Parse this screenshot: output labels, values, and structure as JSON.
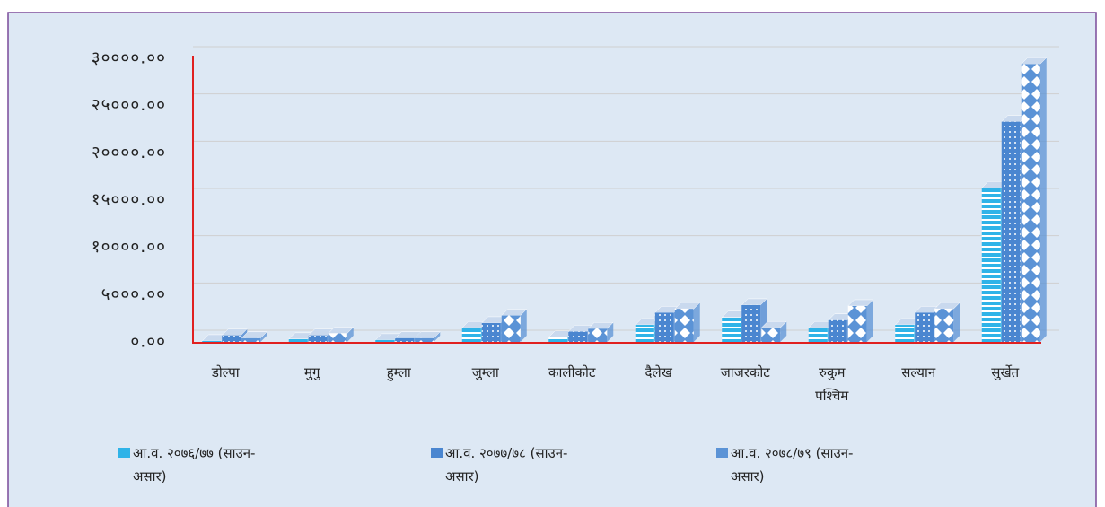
{
  "chart_data": {
    "type": "bar3d",
    "categories": [
      "डोल्पा",
      "मुगु",
      "हुम्ला",
      "जुम्ला",
      "कालीकोट",
      "दैलेख",
      "जाजरकोट",
      "रुकुम पश्चिम",
      "सल्यान",
      "सुर्खेत"
    ],
    "series": [
      {
        "name": "आ.व. २०७६/७७ (साउन-असार)",
        "color": "#2fb3e8",
        "pattern": "stripes",
        "values": [
          100,
          300,
          200,
          1500,
          500,
          1800,
          2600,
          1500,
          1800,
          16300
        ]
      },
      {
        "name": "आ.व. २०७७/७८ (साउन-असार)",
        "color": "#4a86d0",
        "pattern": "dots",
        "values": [
          700,
          700,
          400,
          2000,
          1100,
          3100,
          3900,
          2300,
          3100,
          23300
        ]
      },
      {
        "name": "आ.व. २०७८/७९ (साउन-असार)",
        "color": "#5b93d6",
        "pattern": "diamonds",
        "values": [
          400,
          900,
          400,
          2800,
          1400,
          3500,
          1500,
          3800,
          3500,
          29400
        ]
      }
    ],
    "ylim": [
      0,
      30000
    ],
    "yticks": [
      {
        "value": 0,
        "label": "०.००"
      },
      {
        "value": 5000,
        "label": "५०००.००"
      },
      {
        "value": 10000,
        "label": "१००००.००"
      },
      {
        "value": 15000,
        "label": "१५०००.००"
      },
      {
        "value": 20000,
        "label": "२००००.००"
      },
      {
        "value": 25000,
        "label": "२५०००.००"
      },
      {
        "value": 30000,
        "label": "३००००.००"
      }
    ],
    "grid": true
  }
}
